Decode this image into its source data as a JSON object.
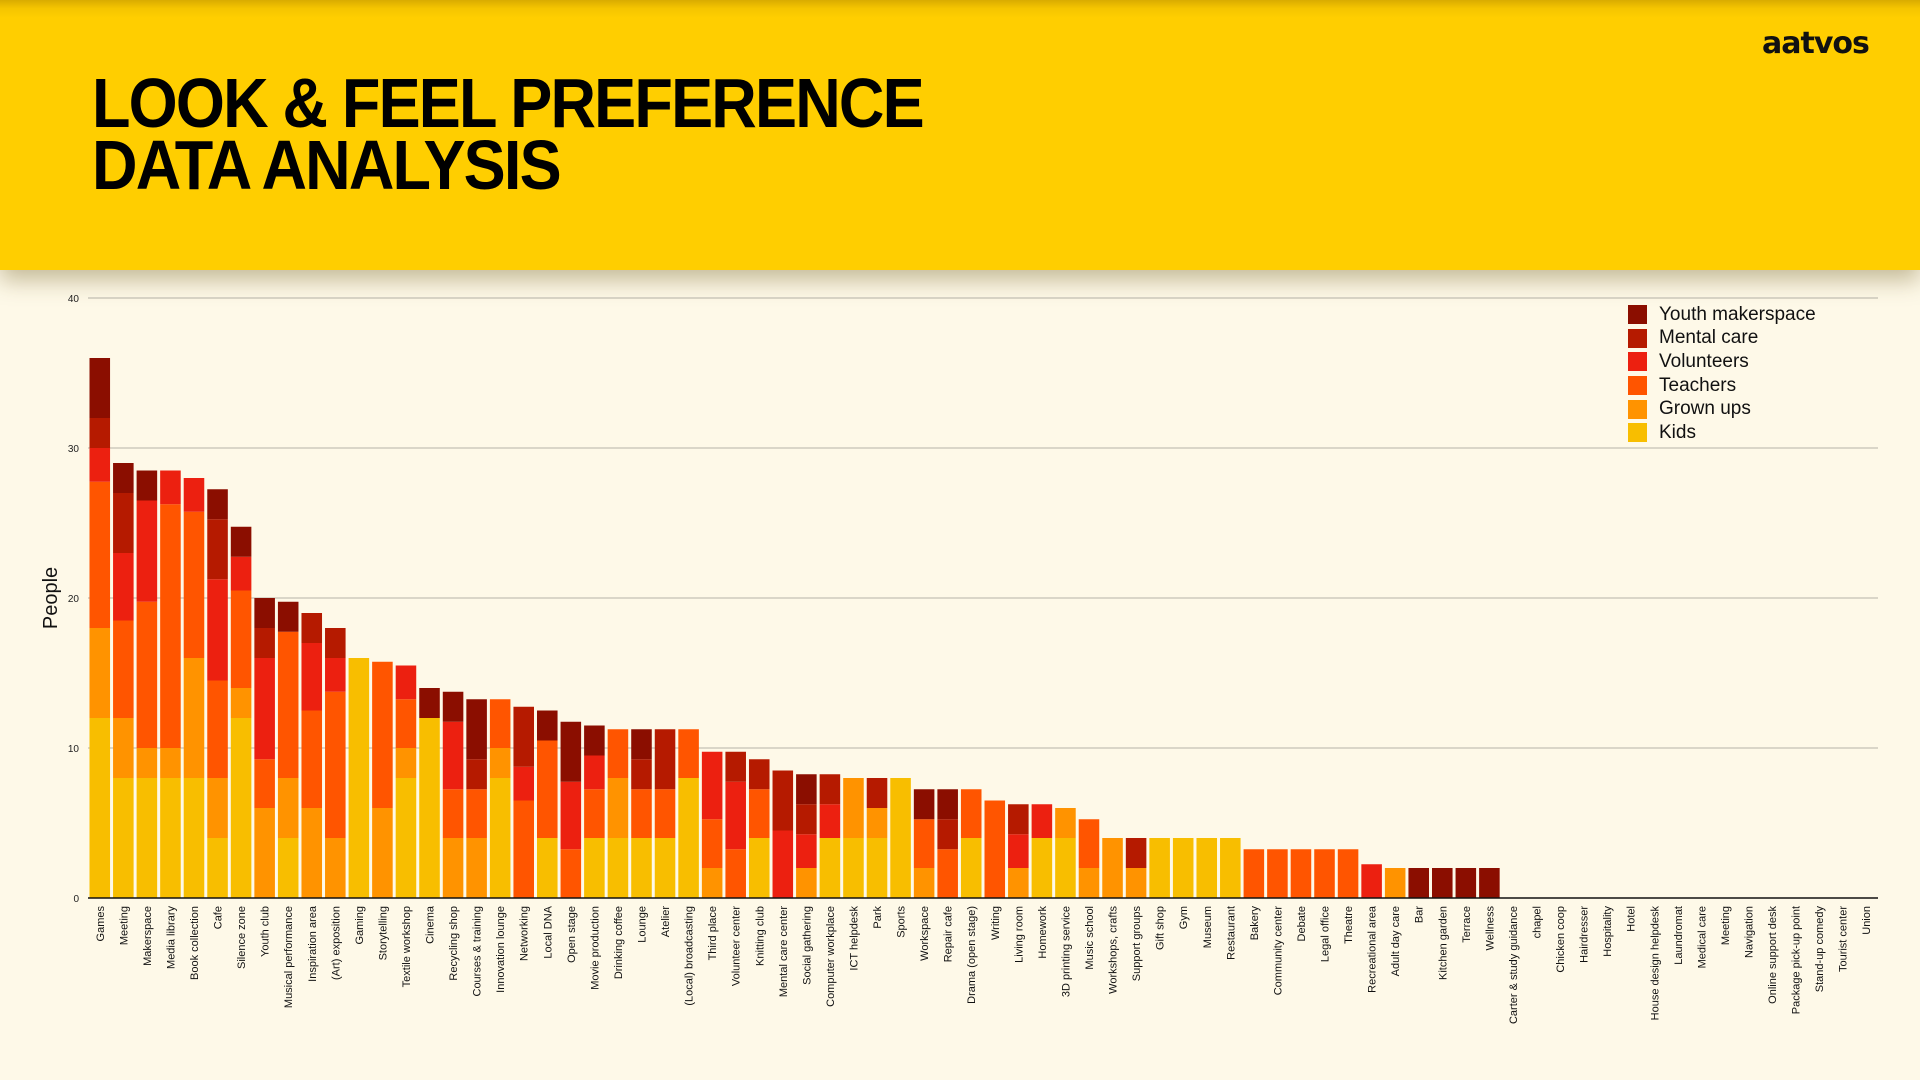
{
  "header": {
    "title_line1": "LOOK & FEEL PREFERENCE",
    "title_line2": "DATA ANALYSIS",
    "logo": "aatvos"
  },
  "colors": {
    "header_bg": "#FFCE00",
    "page_bg": "#FEF9E8"
  },
  "chart_data": {
    "type": "bar",
    "stacked": true,
    "title": "LOOK & FEEL PREFERENCE DATA ANALYSIS",
    "xlabel": "",
    "ylabel": "People",
    "ylim": [
      0,
      40
    ],
    "yticks": [
      0,
      10,
      20,
      30,
      40
    ],
    "grid": true,
    "legend_position": "top-right",
    "categories": [
      "Games",
      "Meeting",
      "Makerspace",
      "Media library",
      "Book collection",
      "Cafe",
      "Silence zone",
      "Youth club",
      "Musical performance",
      "Inspiration area",
      "(Art) exposition",
      "Gaming",
      "Storytelling",
      "Textile workshop",
      "Cinema",
      "Recycling shop",
      "Courses & training",
      "Innovation lounge",
      "Networking",
      "Local DNA",
      "Open stage",
      "Movie production",
      "Drinking coffee",
      "Lounge",
      "Atelier",
      "(Local) broadcasting",
      "Third place",
      "Volunteer center",
      "Knitting club",
      "Mental care center",
      "Social gathering",
      "Computer workplace",
      "ICT helpdesk",
      "Park",
      "Sports",
      "Workspace",
      "Repair cafe",
      "Drama (open stage)",
      "Writing",
      "Living room",
      "Homework",
      "3D printing service",
      "Music school",
      "Workshops, crafts",
      "Support groups",
      "Gift shop",
      "Gym",
      "Museum",
      "Restaurant",
      "Bakery",
      "Community center",
      "Debate",
      "Legal office",
      "Theatre",
      "Recreational area",
      "Adult day care",
      "Bar",
      "Kitchen garden",
      "Terrace",
      "Wellness",
      "Carter & study guidance",
      "chapel",
      "Chicken coop",
      "Hairdresser",
      "Hospitality",
      "Hotel",
      "House design helpdesk",
      "Laundromat",
      "Medical care",
      "Meeting",
      "Navigation",
      "Online support desk",
      "Package pick-up point",
      "Stand-up comedy",
      "Tourist center",
      "Union"
    ],
    "series": [
      {
        "name": "Kids",
        "color": "#F8BE00",
        "values": [
          12,
          8,
          8,
          8,
          8,
          4,
          12,
          0,
          4,
          0,
          0,
          16,
          0,
          8,
          12,
          0,
          0,
          8,
          0,
          4,
          0,
          4,
          4,
          4,
          4,
          8,
          0,
          0,
          4,
          0,
          0,
          4,
          4,
          4,
          8,
          0,
          0,
          4,
          0,
          0,
          4,
          4,
          0,
          0,
          0,
          4,
          4,
          4,
          4,
          0,
          0,
          0,
          0,
          0,
          0,
          0,
          0,
          0,
          0,
          0,
          0,
          0,
          0,
          0,
          0,
          0,
          0,
          0,
          0,
          0,
          0,
          0,
          0,
          0,
          0,
          0
        ]
      },
      {
        "name": "Grown ups",
        "color": "#FF9300",
        "values": [
          6,
          4,
          2,
          2,
          8,
          4,
          2,
          6,
          4,
          6,
          4,
          0,
          6,
          2,
          0,
          4,
          4,
          2,
          0,
          0,
          0,
          0,
          4,
          0,
          0,
          0,
          2,
          0,
          0,
          0,
          2,
          0,
          4,
          2,
          0,
          2,
          0,
          0,
          0,
          2,
          0,
          2,
          2,
          4,
          2,
          0,
          0,
          0,
          0,
          0,
          0,
          0,
          0,
          0,
          0,
          2,
          0,
          0,
          0,
          0,
          0,
          0,
          0,
          0,
          0,
          0,
          0,
          0,
          0,
          0,
          0,
          0,
          0,
          0,
          0,
          0
        ]
      },
      {
        "name": "Teachers",
        "color": "#FF5500",
        "values": [
          9.75,
          6.5,
          9.75,
          16.25,
          9.75,
          6.5,
          6.5,
          3.25,
          9.75,
          6.5,
          9.75,
          0,
          9.75,
          3.25,
          0,
          3.25,
          3.25,
          3.25,
          6.5,
          6.5,
          3.25,
          3.25,
          3.25,
          3.25,
          3.25,
          3.25,
          3.25,
          3.25,
          3.25,
          0,
          0,
          0,
          0,
          0,
          0,
          3.25,
          3.25,
          3.25,
          6.5,
          0,
          0,
          0,
          3.25,
          0,
          0,
          0,
          0,
          0,
          0,
          3.25,
          3.25,
          3.25,
          3.25,
          3.25,
          0,
          0,
          0,
          0,
          0,
          0,
          0,
          0,
          0,
          0,
          0,
          0,
          0,
          0,
          0,
          0,
          0,
          0,
          0,
          0,
          0,
          0
        ]
      },
      {
        "name": "Volunteers",
        "color": "#EC2010",
        "values": [
          2.25,
          4.5,
          6.75,
          2.25,
          2.25,
          6.75,
          2.25,
          6.75,
          0,
          4.5,
          2.25,
          0,
          0,
          2.25,
          0,
          4.5,
          0,
          0,
          2.25,
          0,
          4.5,
          2.25,
          0,
          0,
          0,
          0,
          4.5,
          4.5,
          0,
          4.5,
          2.25,
          2.25,
          0,
          0,
          0,
          0,
          0,
          0,
          0,
          2.25,
          2.25,
          0,
          0,
          0,
          0,
          0,
          0,
          0,
          0,
          0,
          0,
          0,
          0,
          0,
          2.25,
          0,
          0,
          0,
          0,
          0,
          0,
          0,
          0,
          0,
          0,
          0,
          0,
          0,
          0,
          0,
          0,
          0,
          0,
          0,
          0,
          0
        ]
      },
      {
        "name": "Mental care",
        "color": "#B51A00",
        "values": [
          2,
          4,
          0,
          0,
          0,
          4,
          0,
          2,
          0,
          2,
          2,
          0,
          0,
          0,
          0,
          0,
          2,
          0,
          4,
          0,
          0,
          0,
          0,
          2,
          4,
          0,
          0,
          2,
          2,
          4,
          2,
          2,
          0,
          2,
          0,
          0,
          2,
          0,
          0,
          2,
          0,
          0,
          0,
          0,
          2,
          0,
          0,
          0,
          0,
          0,
          0,
          0,
          0,
          0,
          0,
          0,
          0,
          0,
          0,
          0,
          0,
          0,
          0,
          0,
          0,
          0,
          0,
          0,
          0,
          0,
          0,
          0,
          0,
          0,
          0,
          0
        ]
      },
      {
        "name": "Youth makerspace",
        "color": "#8B0E00",
        "values": [
          4,
          2,
          2,
          0,
          0,
          2,
          2,
          2,
          2,
          0,
          0,
          0,
          0,
          0,
          2,
          2,
          4,
          0,
          0,
          2,
          4,
          2,
          0,
          2,
          0,
          0,
          0,
          0,
          0,
          0,
          2,
          0,
          0,
          0,
          0,
          2,
          2,
          0,
          0,
          0,
          0,
          0,
          0,
          0,
          0,
          0,
          0,
          0,
          0,
          0,
          0,
          0,
          0,
          0,
          0,
          0,
          2,
          2,
          2,
          2,
          0,
          0,
          0,
          0,
          0,
          0,
          0,
          0,
          0,
          0,
          0,
          0,
          0,
          0,
          0,
          0
        ]
      }
    ]
  },
  "legend": [
    {
      "label": "Youth makerspace",
      "color": "#8B0E00"
    },
    {
      "label": "Mental care",
      "color": "#B51A00"
    },
    {
      "label": "Volunteers",
      "color": "#EC2010"
    },
    {
      "label": "Teachers",
      "color": "#FF5500"
    },
    {
      "label": "Grown ups",
      "color": "#FF9300"
    },
    {
      "label": "Kids",
      "color": "#F8BE00"
    }
  ]
}
